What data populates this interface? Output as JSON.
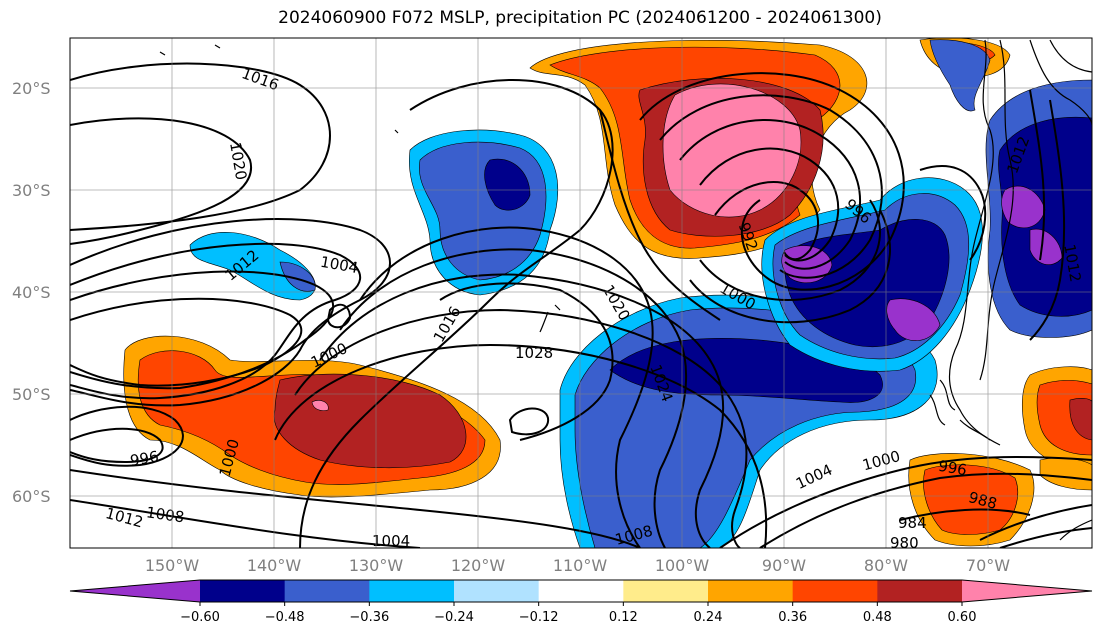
{
  "title": "2024060900 F072 MSLP, precipitation PC (2024061200 - 2024061300)",
  "lat_ticks": [
    "20°S",
    "30°S",
    "40°S",
    "50°S",
    "60°S"
  ],
  "lon_ticks": [
    "150°W",
    "140°W",
    "130°W",
    "120°W",
    "110°W",
    "100°W",
    "90°W",
    "80°W",
    "70°W"
  ],
  "colorbar": {
    "ticks": [
      "−0.60",
      "−0.48",
      "−0.36",
      "−0.24",
      "−0.12",
      "0.12",
      "0.24",
      "0.36",
      "0.48",
      "0.60"
    ],
    "colors": [
      "#9932cc",
      "#00008b",
      "#3a5fcd",
      "#00bfff",
      "#b0e2ff",
      "#ffffff",
      "#ffec8b",
      "#ffa500",
      "#ff4500",
      "#b22222",
      "#ff82ab"
    ]
  },
  "contour_labels": [
    "1016",
    "1020",
    "1012",
    "1004",
    "1000",
    "996",
    "1016",
    "1028",
    "1020",
    "1024",
    "992",
    "996",
    "1000",
    "1012",
    "1004",
    "1000",
    "996",
    "988",
    "984",
    "980",
    "1008",
    "1004",
    "1008",
    "1012",
    "1000",
    "1012"
  ]
}
